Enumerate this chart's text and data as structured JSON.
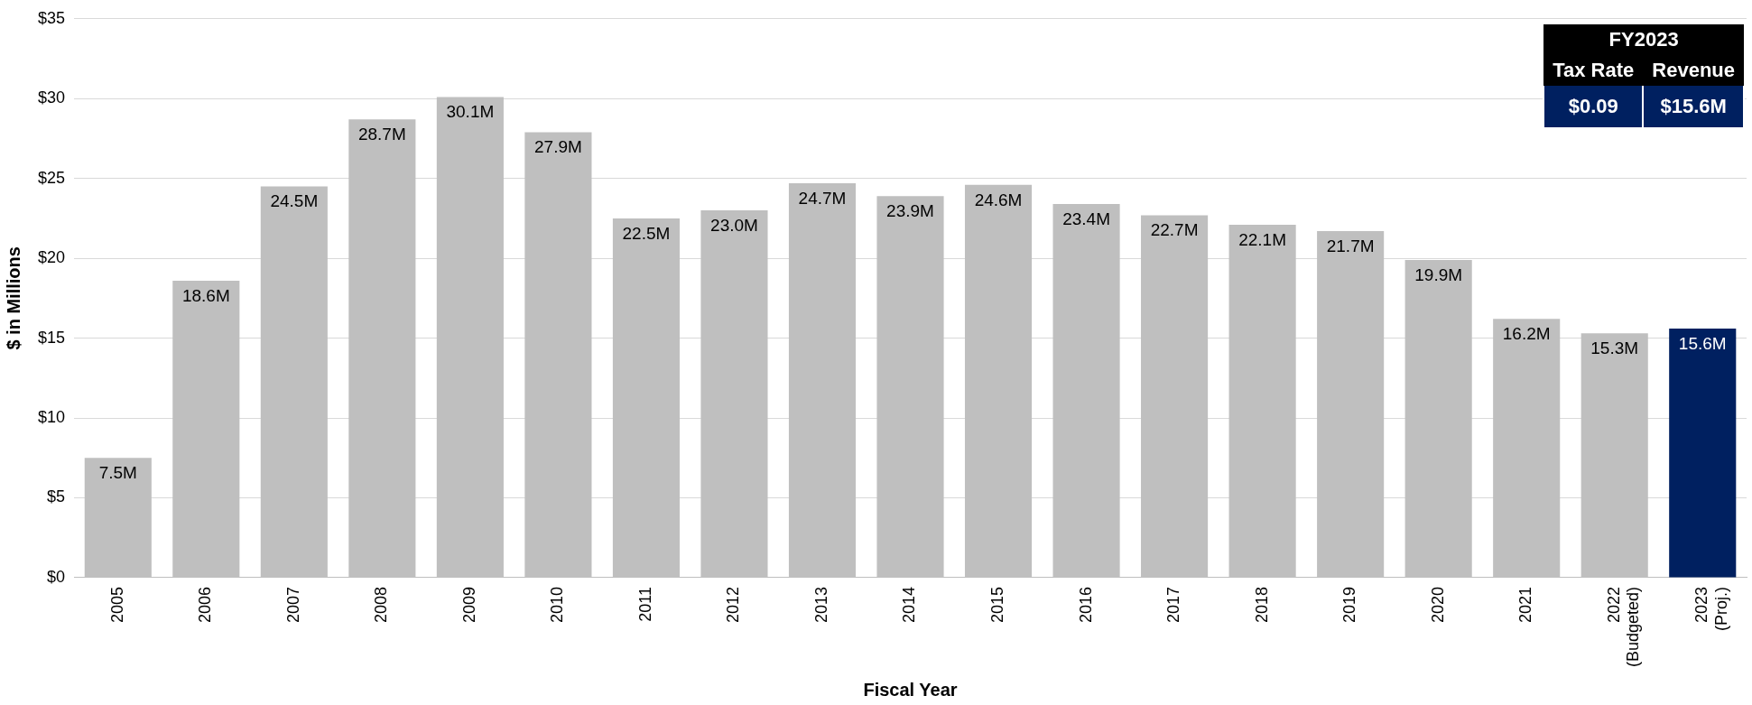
{
  "chart_data": {
    "type": "bar",
    "xlabel": "Fiscal Year",
    "ylabel": "$ in Millions",
    "categories": [
      "2005",
      "2006",
      "2007",
      "2008",
      "2009",
      "2010",
      "2011",
      "2012",
      "2013",
      "2014",
      "2015",
      "2016",
      "2017",
      "2018",
      "2019",
      "2020",
      "2021",
      "2022 (Budgeted)",
      "2023 (Proj.)"
    ],
    "values": [
      7.5,
      18.6,
      24.5,
      28.7,
      30.1,
      27.9,
      22.5,
      23.0,
      24.7,
      23.9,
      24.6,
      23.4,
      22.7,
      22.1,
      21.7,
      19.9,
      16.2,
      15.3,
      15.6
    ],
    "value_labels": [
      "7.5M",
      "18.6M",
      "24.5M",
      "28.7M",
      "30.1M",
      "27.9M",
      "22.5M",
      "23.0M",
      "24.7M",
      "23.9M",
      "24.6M",
      "23.4M",
      "22.7M",
      "22.1M",
      "21.7M",
      "19.9M",
      "16.2M",
      "15.3M",
      "15.6M"
    ],
    "colors": [
      "#bfbfbf",
      "#bfbfbf",
      "#bfbfbf",
      "#bfbfbf",
      "#bfbfbf",
      "#bfbfbf",
      "#bfbfbf",
      "#bfbfbf",
      "#bfbfbf",
      "#bfbfbf",
      "#bfbfbf",
      "#bfbfbf",
      "#bfbfbf",
      "#bfbfbf",
      "#bfbfbf",
      "#bfbfbf",
      "#bfbfbf",
      "#bfbfbf",
      "#002060"
    ],
    "ylim": [
      0,
      35
    ],
    "yticks": [
      {
        "value": 0,
        "label": "$0"
      },
      {
        "value": 5,
        "label": "$5"
      },
      {
        "value": 10,
        "label": "$10"
      },
      {
        "value": 15,
        "label": "$15"
      },
      {
        "value": 20,
        "label": "$20"
      },
      {
        "value": 25,
        "label": "$25"
      },
      {
        "value": 30,
        "label": "$30"
      },
      {
        "value": 35,
        "label": "$35"
      }
    ],
    "grid": "y",
    "legend": false,
    "annotations": [
      "FY2023",
      "Tax Rate",
      "Revenue",
      "$0.09",
      "$15.6M"
    ]
  }
}
